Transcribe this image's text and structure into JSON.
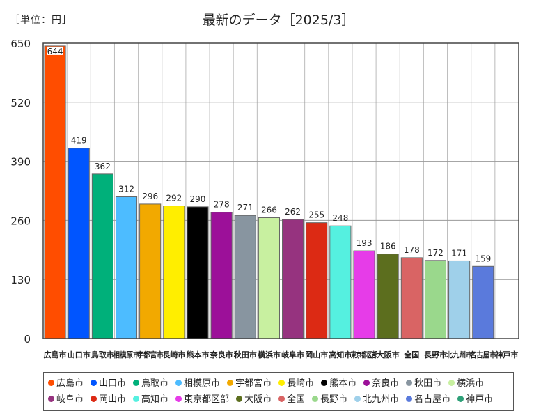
{
  "unit_label": "［単位：円］",
  "chart_data": {
    "type": "bar",
    "title": "最新のデータ［2025/3］",
    "ylim": [
      0,
      650
    ],
    "yticks": [
      0,
      130,
      260,
      390,
      520,
      650
    ],
    "categories": [
      "広島市",
      "山口市",
      "鳥取市",
      "相模原市",
      "宇都宮市",
      "長崎市",
      "熊本市",
      "奈良市",
      "秋田市",
      "横浜市",
      "岐阜市",
      "岡山市",
      "高知市",
      "東京都区部",
      "大阪市",
      "全国",
      "長野市",
      "北九州市",
      "名古屋市",
      "神戸市"
    ],
    "tick_labels": [
      "広島市",
      "山口市",
      "鳥取市",
      "相模原市",
      "宇都宮市",
      "長崎市",
      "熊本市",
      "奈良市",
      "秋田市",
      "横浜市",
      "岐阜市",
      "岡山市",
      "高知市",
      "東京都区部",
      "大阪市",
      "全国",
      "長野市",
      "北九州市",
      "名古屋市",
      "神戸市"
    ],
    "values": [
      644,
      419,
      362,
      312,
      296,
      292,
      290,
      278,
      271,
      266,
      262,
      255,
      248,
      193,
      186,
      178,
      172,
      171,
      159,
      null
    ],
    "value_labels": [
      "644",
      "419",
      "362",
      "312",
      "296",
      "292",
      "290",
      "278",
      "271",
      "266",
      "262",
      "255",
      "248",
      "193",
      "186",
      "178",
      "172",
      "171",
      "159",
      ""
    ],
    "colors": [
      "#ff4d00",
      "#0055ff",
      "#00b07a",
      "#4dbcff",
      "#f2a900",
      "#ffee00",
      "#000000",
      "#9c1099",
      "#8895a0",
      "#c8f0a0",
      "#96337f",
      "#dc2a14",
      "#55f0e0",
      "#e63ce8",
      "#5c6e1e",
      "#d96464",
      "#9ad88c",
      "#9fd0ea",
      "#5a7adc",
      "#2ea078"
    ],
    "grid": true,
    "legend": "bottom"
  }
}
